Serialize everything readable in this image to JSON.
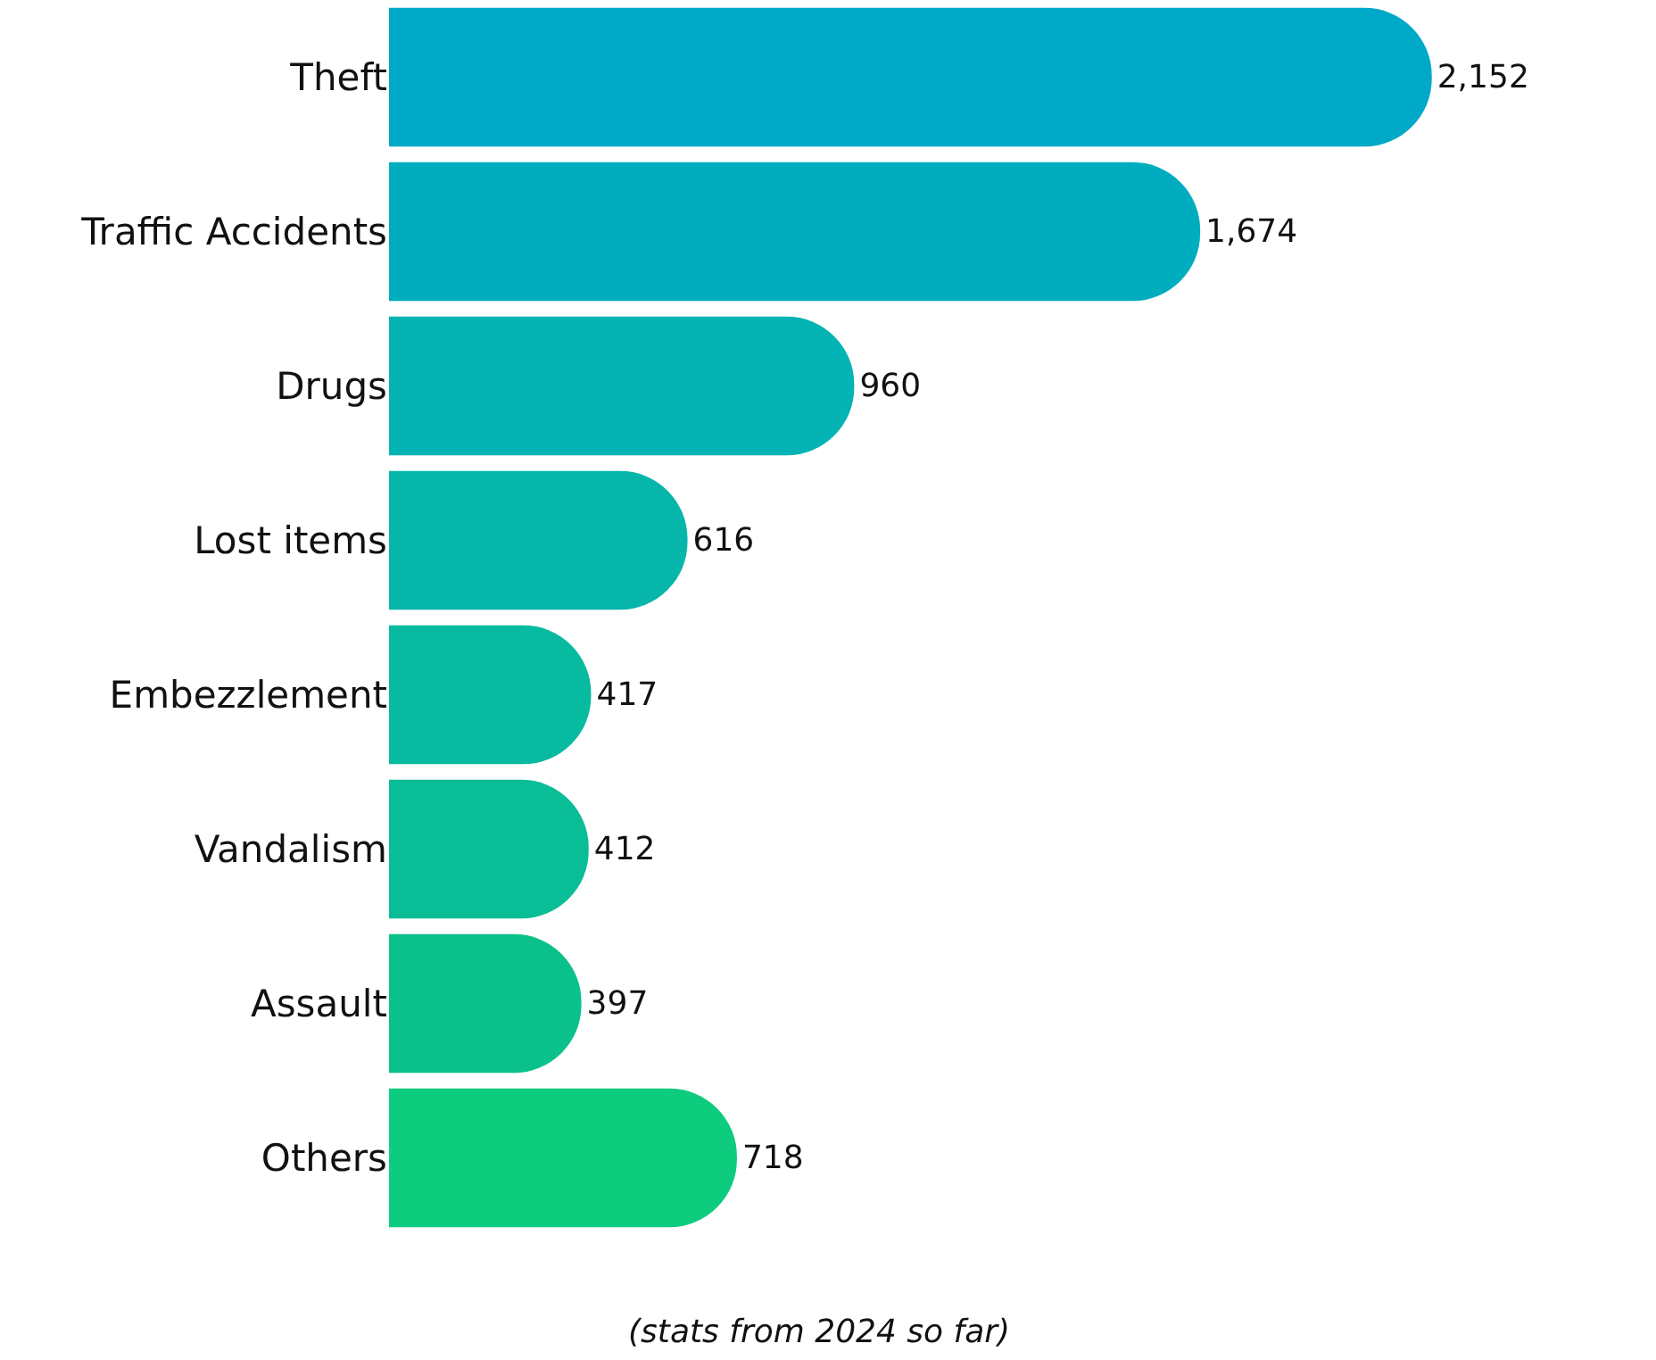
{
  "chart_data": {
    "type": "bar",
    "orientation": "horizontal",
    "categories": [
      "Theft",
      "Traffic Accidents",
      "Drugs",
      "Lost items",
      "Embezzlement",
      "Vandalism",
      "Assault",
      "Others"
    ],
    "values": [
      2152,
      1674,
      960,
      616,
      417,
      412,
      397,
      718
    ],
    "colors": [
      "#00a9c8",
      "#00adbf",
      "#04b3b4",
      "#06b6ab",
      "#08baa0",
      "#09bd96",
      "#0bc18b",
      "#0ecc7e"
    ],
    "value_labels": [
      "2,152",
      "1,674",
      "960",
      "616",
      "417",
      "412",
      "397",
      "718"
    ],
    "annotations": [
      "(stats from 2024 so far)"
    ],
    "data_labels": false
  }
}
